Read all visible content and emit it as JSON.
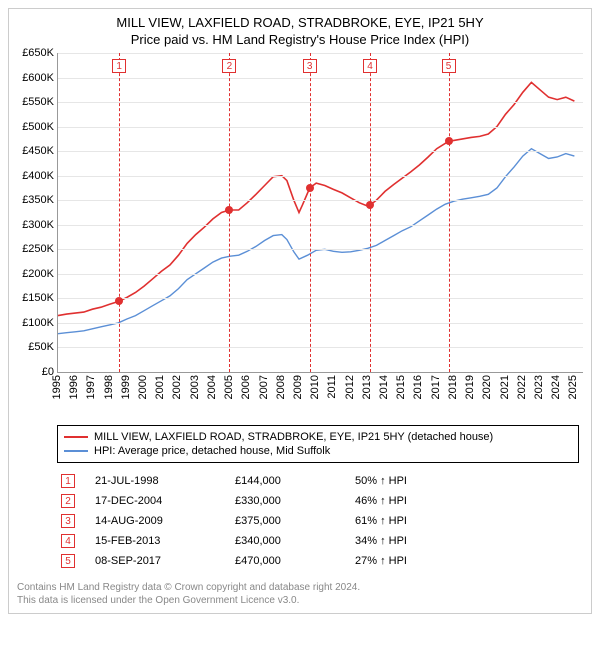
{
  "title": {
    "main": "MILL VIEW, LAXFIELD ROAD, STRADBROKE, EYE, IP21 5HY",
    "sub": "Price paid vs. HM Land Registry's House Price Index (HPI)"
  },
  "chart": {
    "type": "line",
    "background_color": "#ffffff",
    "grid_color": "#e6e6e6",
    "axis_color": "#999999",
    "label_fontsize": 11,
    "x": {
      "min": 1995,
      "max": 2025.5,
      "ticks": [
        1995,
        1996,
        1997,
        1998,
        1999,
        2000,
        2001,
        2002,
        2003,
        2004,
        2005,
        2006,
        2007,
        2008,
        2009,
        2010,
        2011,
        2012,
        2013,
        2014,
        2015,
        2016,
        2017,
        2018,
        2019,
        2020,
        2021,
        2022,
        2023,
        2024,
        2025
      ]
    },
    "y": {
      "min": 0,
      "max": 650000,
      "tick_step": 50000,
      "ticks": [
        {
          "v": 0,
          "label": "£0"
        },
        {
          "v": 50000,
          "label": "£50K"
        },
        {
          "v": 100000,
          "label": "£100K"
        },
        {
          "v": 150000,
          "label": "£150K"
        },
        {
          "v": 200000,
          "label": "£200K"
        },
        {
          "v": 250000,
          "label": "£250K"
        },
        {
          "v": 300000,
          "label": "£300K"
        },
        {
          "v": 350000,
          "label": "£350K"
        },
        {
          "v": 400000,
          "label": "£400K"
        },
        {
          "v": 450000,
          "label": "£450K"
        },
        {
          "v": 500000,
          "label": "£500K"
        },
        {
          "v": 550000,
          "label": "£550K"
        },
        {
          "v": 600000,
          "label": "£600K"
        },
        {
          "v": 650000,
          "label": "£650K"
        }
      ]
    },
    "series": [
      {
        "name": "property",
        "label": "MILL VIEW, LAXFIELD ROAD, STRADBROKE, EYE, IP21 5HY (detached house)",
        "color": "#e03030",
        "line_width": 1.6,
        "points": [
          [
            1995.0,
            115000
          ],
          [
            1995.5,
            118000
          ],
          [
            1996.0,
            120000
          ],
          [
            1996.5,
            122000
          ],
          [
            1997.0,
            128000
          ],
          [
            1997.5,
            132000
          ],
          [
            1998.0,
            138000
          ],
          [
            1998.55,
            144000
          ],
          [
            1999.0,
            152000
          ],
          [
            1999.5,
            162000
          ],
          [
            2000.0,
            175000
          ],
          [
            2000.5,
            190000
          ],
          [
            2001.0,
            205000
          ],
          [
            2001.5,
            218000
          ],
          [
            2002.0,
            238000
          ],
          [
            2002.5,
            262000
          ],
          [
            2003.0,
            280000
          ],
          [
            2003.5,
            295000
          ],
          [
            2004.0,
            312000
          ],
          [
            2004.5,
            325000
          ],
          [
            2004.96,
            330000
          ],
          [
            2005.5,
            330000
          ],
          [
            2006.0,
            345000
          ],
          [
            2006.5,
            362000
          ],
          [
            2007.0,
            380000
          ],
          [
            2007.5,
            398000
          ],
          [
            2008.0,
            400000
          ],
          [
            2008.3,
            390000
          ],
          [
            2008.7,
            350000
          ],
          [
            2009.0,
            325000
          ],
          [
            2009.2,
            340000
          ],
          [
            2009.62,
            375000
          ],
          [
            2010.0,
            385000
          ],
          [
            2010.5,
            380000
          ],
          [
            2011.0,
            372000
          ],
          [
            2011.5,
            365000
          ],
          [
            2012.0,
            355000
          ],
          [
            2012.5,
            345000
          ],
          [
            2013.0,
            338000
          ],
          [
            2013.13,
            340000
          ],
          [
            2013.5,
            350000
          ],
          [
            2014.0,
            368000
          ],
          [
            2014.5,
            382000
          ],
          [
            2015.0,
            395000
          ],
          [
            2015.5,
            408000
          ],
          [
            2016.0,
            422000
          ],
          [
            2016.5,
            438000
          ],
          [
            2017.0,
            455000
          ],
          [
            2017.69,
            470000
          ],
          [
            2018.0,
            472000
          ],
          [
            2018.5,
            475000
          ],
          [
            2019.0,
            478000
          ],
          [
            2019.5,
            480000
          ],
          [
            2020.0,
            485000
          ],
          [
            2020.5,
            500000
          ],
          [
            2021.0,
            525000
          ],
          [
            2021.5,
            545000
          ],
          [
            2022.0,
            570000
          ],
          [
            2022.5,
            590000
          ],
          [
            2023.0,
            575000
          ],
          [
            2023.5,
            560000
          ],
          [
            2024.0,
            555000
          ],
          [
            2024.5,
            560000
          ],
          [
            2025.0,
            552000
          ]
        ]
      },
      {
        "name": "hpi",
        "label": "HPI: Average price, detached house, Mid Suffolk",
        "color": "#5b8fd6",
        "line_width": 1.4,
        "points": [
          [
            1995.0,
            78000
          ],
          [
            1995.5,
            80000
          ],
          [
            1996.0,
            82000
          ],
          [
            1996.5,
            84000
          ],
          [
            1997.0,
            88000
          ],
          [
            1997.5,
            92000
          ],
          [
            1998.0,
            96000
          ],
          [
            1998.5,
            100000
          ],
          [
            1999.0,
            108000
          ],
          [
            1999.5,
            115000
          ],
          [
            2000.0,
            125000
          ],
          [
            2000.5,
            135000
          ],
          [
            2001.0,
            145000
          ],
          [
            2001.5,
            155000
          ],
          [
            2002.0,
            170000
          ],
          [
            2002.5,
            188000
          ],
          [
            2003.0,
            200000
          ],
          [
            2003.5,
            212000
          ],
          [
            2004.0,
            224000
          ],
          [
            2004.5,
            232000
          ],
          [
            2005.0,
            236000
          ],
          [
            2005.5,
            238000
          ],
          [
            2006.0,
            246000
          ],
          [
            2006.5,
            256000
          ],
          [
            2007.0,
            268000
          ],
          [
            2007.5,
            278000
          ],
          [
            2008.0,
            280000
          ],
          [
            2008.3,
            270000
          ],
          [
            2008.7,
            245000
          ],
          [
            2009.0,
            230000
          ],
          [
            2009.5,
            238000
          ],
          [
            2010.0,
            248000
          ],
          [
            2010.5,
            250000
          ],
          [
            2011.0,
            246000
          ],
          [
            2011.5,
            244000
          ],
          [
            2012.0,
            245000
          ],
          [
            2012.5,
            248000
          ],
          [
            2013.0,
            252000
          ],
          [
            2013.5,
            258000
          ],
          [
            2014.0,
            268000
          ],
          [
            2014.5,
            278000
          ],
          [
            2015.0,
            288000
          ],
          [
            2015.5,
            296000
          ],
          [
            2016.0,
            308000
          ],
          [
            2016.5,
            320000
          ],
          [
            2017.0,
            332000
          ],
          [
            2017.5,
            342000
          ],
          [
            2018.0,
            348000
          ],
          [
            2018.5,
            352000
          ],
          [
            2019.0,
            355000
          ],
          [
            2019.5,
            358000
          ],
          [
            2020.0,
            362000
          ],
          [
            2020.5,
            375000
          ],
          [
            2021.0,
            398000
          ],
          [
            2021.5,
            418000
          ],
          [
            2022.0,
            440000
          ],
          [
            2022.5,
            455000
          ],
          [
            2023.0,
            445000
          ],
          [
            2023.5,
            435000
          ],
          [
            2024.0,
            438000
          ],
          [
            2024.5,
            445000
          ],
          [
            2025.0,
            440000
          ]
        ]
      }
    ],
    "markers": [
      {
        "n": "1",
        "x": 1998.55,
        "y": 144000
      },
      {
        "n": "2",
        "x": 2004.96,
        "y": 330000
      },
      {
        "n": "3",
        "x": 2009.62,
        "y": 375000
      },
      {
        "n": "4",
        "x": 2013.13,
        "y": 340000
      },
      {
        "n": "5",
        "x": 2017.69,
        "y": 470000
      }
    ],
    "marker_color": "#e03030",
    "marker_badge_border": "#e03030",
    "vline_dash_color": "#e03030"
  },
  "legend": {
    "border_color": "#000000",
    "fontsize": 11
  },
  "sales_table": {
    "rows": [
      {
        "n": "1",
        "date": "21-JUL-1998",
        "price": "£144,000",
        "pct": "50%",
        "dir": "↑",
        "suffix": "HPI"
      },
      {
        "n": "2",
        "date": "17-DEC-2004",
        "price": "£330,000",
        "pct": "46%",
        "dir": "↑",
        "suffix": "HPI"
      },
      {
        "n": "3",
        "date": "14-AUG-2009",
        "price": "£375,000",
        "pct": "61%",
        "dir": "↑",
        "suffix": "HPI"
      },
      {
        "n": "4",
        "date": "15-FEB-2013",
        "price": "£340,000",
        "pct": "34%",
        "dir": "↑",
        "suffix": "HPI"
      },
      {
        "n": "5",
        "date": "08-SEP-2017",
        "price": "£470,000",
        "pct": "27%",
        "dir": "↑",
        "suffix": "HPI"
      }
    ]
  },
  "footer": {
    "line1": "Contains HM Land Registry data © Crown copyright and database right 2024.",
    "line2": "This data is licensed under the Open Government Licence v3.0."
  }
}
